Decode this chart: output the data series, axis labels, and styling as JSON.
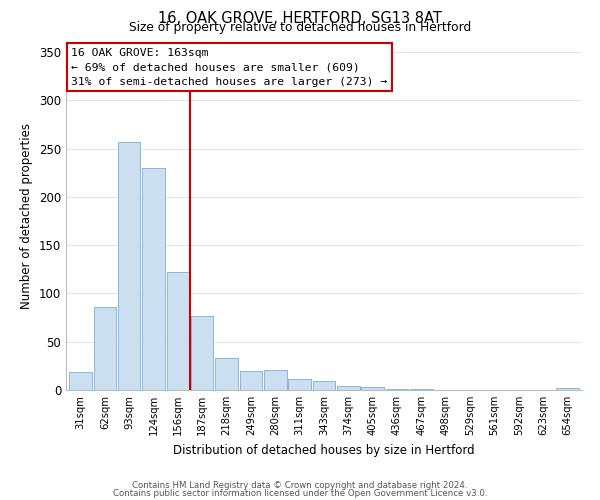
{
  "title": "16, OAK GROVE, HERTFORD, SG13 8AT",
  "subtitle": "Size of property relative to detached houses in Hertford",
  "xlabel": "Distribution of detached houses by size in Hertford",
  "ylabel": "Number of detached properties",
  "bar_labels": [
    "31sqm",
    "62sqm",
    "93sqm",
    "124sqm",
    "156sqm",
    "187sqm",
    "218sqm",
    "249sqm",
    "280sqm",
    "311sqm",
    "343sqm",
    "374sqm",
    "405sqm",
    "436sqm",
    "467sqm",
    "498sqm",
    "529sqm",
    "561sqm",
    "592sqm",
    "623sqm",
    "654sqm"
  ],
  "bar_values": [
    19,
    86,
    257,
    230,
    122,
    77,
    33,
    20,
    21,
    11,
    9,
    4,
    3,
    1,
    1,
    0,
    0,
    0,
    0,
    0,
    2
  ],
  "bar_color": "#ccdff0",
  "bar_edge_color": "#7ab0d4",
  "vline_x": 4.5,
  "vline_color": "#cc0000",
  "annotation_title": "16 OAK GROVE: 163sqm",
  "annotation_line1": "← 69% of detached houses are smaller (609)",
  "annotation_line2": "31% of semi-detached houses are larger (273) →",
  "annotation_box_color": "#ffffff",
  "annotation_box_edge": "#cc0000",
  "ylim": [
    0,
    360
  ],
  "yticks": [
    0,
    50,
    100,
    150,
    200,
    250,
    300,
    350
  ],
  "footer_line1": "Contains HM Land Registry data © Crown copyright and database right 2024.",
  "footer_line2": "Contains public sector information licensed under the Open Government Licence v3.0.",
  "background_color": "#ffffff",
  "grid_color": "#dde8f0"
}
